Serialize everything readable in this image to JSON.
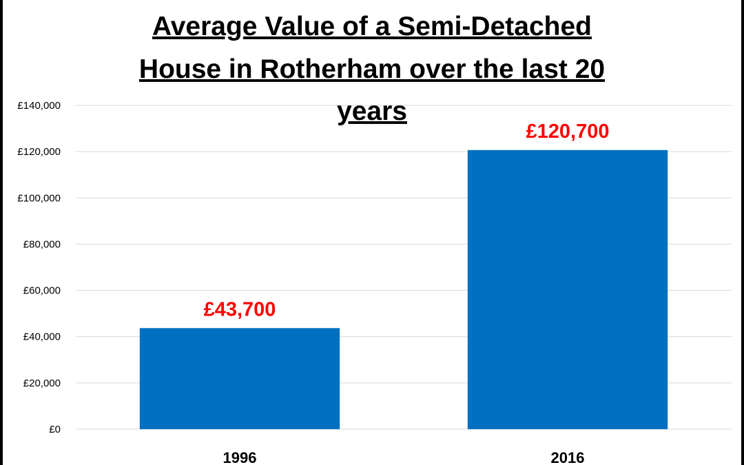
{
  "chart_data": {
    "type": "bar",
    "title_lines": [
      "Average Value of a Semi-Detached",
      "House in Rotherham over the last 20",
      "years"
    ],
    "categories": [
      "1996",
      "2016"
    ],
    "values": [
      43700,
      120700
    ],
    "data_labels": [
      "£43,700",
      "£120,700"
    ],
    "ylim": [
      0,
      140000
    ],
    "yticks": [
      0,
      20000,
      40000,
      60000,
      80000,
      100000,
      120000,
      140000
    ],
    "ytick_labels": [
      "£0",
      "£20,000",
      "£40,000",
      "£60,000",
      "£80,000",
      "£100,000",
      "£120,000",
      "£140,000"
    ],
    "grid": true,
    "legend": "none",
    "colors": {
      "bar": "#0070C0",
      "data_label": "#FF0000",
      "grid": "#D9D9D9",
      "background": "#FFFFFF",
      "frame": "#000000"
    }
  }
}
